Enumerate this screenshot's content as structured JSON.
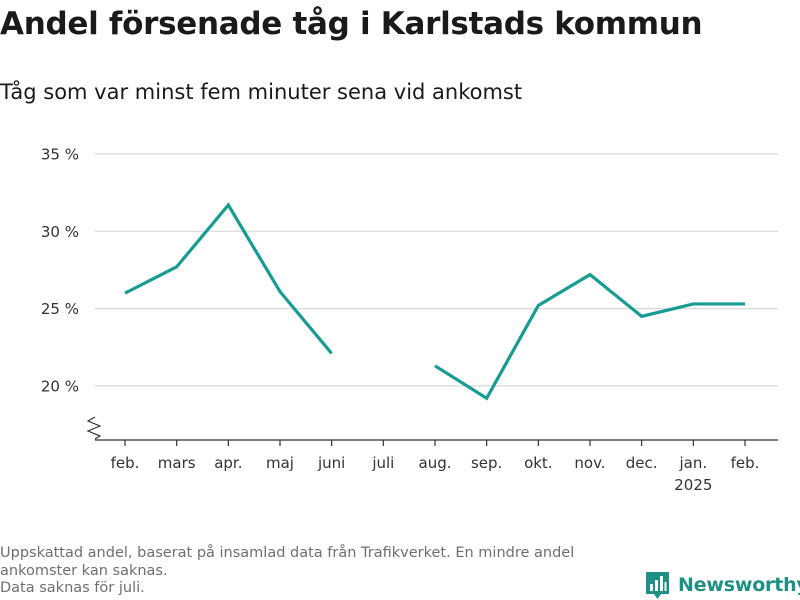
{
  "chart_data": {
    "type": "line",
    "title": "Andel försenade tåg i Karlstads kommun",
    "subtitle": "Tåg som var minst fem minuter sena vid ankomst",
    "categories": [
      "feb.",
      "mars",
      "apr.",
      "maj",
      "juni",
      "juli",
      "aug.",
      "sep.",
      "okt.",
      "nov.",
      "dec.",
      "jan.",
      "feb."
    ],
    "category_sublabels": [
      "",
      "",
      "",
      "",
      "",
      "",
      "",
      "",
      "",
      "",
      "",
      "2025",
      ""
    ],
    "series": [
      {
        "values": [
          26.0,
          27.7,
          31.7,
          26.1,
          22.1,
          null,
          21.3,
          19.2,
          25.2,
          27.2,
          24.5,
          25.3,
          25.3
        ]
      }
    ],
    "yticks": [
      20,
      25,
      30,
      35
    ],
    "ytick_labels": [
      "20 %",
      "25 %",
      "30 %",
      "35 %"
    ],
    "ylim": [
      16.5,
      35
    ],
    "y_axis_break": true,
    "grid": true,
    "xlabel": "",
    "ylabel": "",
    "line_color": "#169c93"
  },
  "footnote": {
    "lines": [
      "Uppskattad andel, baserat på insamlad data från Trafikverket. En mindre andel ankomster kan saknas.",
      "Data saknas för juli."
    ]
  },
  "brand": {
    "name": "Newsworthy",
    "color": "#1f8f86",
    "icon": "bar-chart-badge-icon"
  }
}
